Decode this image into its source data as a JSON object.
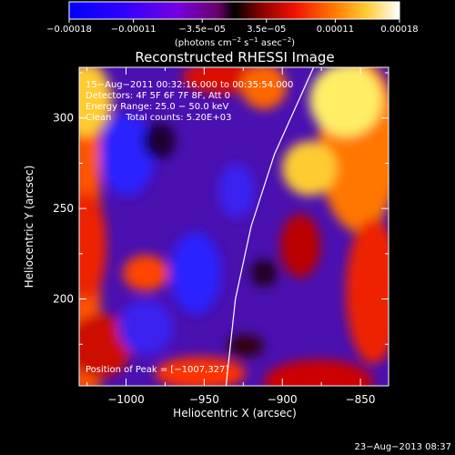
{
  "chart_data": {
    "type": "heatmap",
    "title": "Reconstructed RHESSI Image",
    "xlabel": "Heliocentric X (arcsec)",
    "ylabel": "Heliocentric Y (arcsec)",
    "xlim": [
      -1030,
      -832
    ],
    "ylim": [
      152,
      328
    ],
    "x_ticks": [
      -1000,
      -950,
      -900,
      -850
    ],
    "x_tick_labels": [
      "−1000",
      "−950",
      "−900",
      "−850"
    ],
    "y_ticks": [
      200,
      250,
      300
    ],
    "y_tick_labels": [
      "200",
      "250",
      "300"
    ],
    "colorbar": {
      "min": -0.00018,
      "max": 0.00018,
      "ticks": [
        -0.00018,
        -0.00011,
        -3.5e-05,
        3.5e-05,
        0.00011,
        0.00018
      ],
      "tick_labels": [
        "−0.00018",
        "−0.00011",
        "−3.5e−05",
        "3.5e−05",
        "0.00011",
        "0.00018"
      ],
      "units_prefix": "(photons cm",
      "units_sup1": "−2",
      "units_mid1": " s",
      "units_sup2": "−1",
      "units_mid2": " asec",
      "units_sup3": "−2",
      "units_suffix": ")"
    },
    "annotations": {
      "line1": "15−Aug−2011 00:32:16.000 to 00:35:54.000",
      "line2": "Detectors: 4F 5F 6F 7F 8F, Att 0",
      "line3": "Energy Range: 25.0 − 50.0 keV",
      "line4": "Clean     Total counts: 5.20E+03",
      "peak": "Position of Peak = [−1007,327]"
    },
    "limb": [
      [
        -880,
        328
      ],
      [
        -905,
        280
      ],
      [
        -920,
        240
      ],
      [
        -930,
        200
      ],
      [
        -936,
        152
      ]
    ],
    "grid": false
  },
  "footer": {
    "timestamp": "23−Aug−2013 08:37"
  }
}
